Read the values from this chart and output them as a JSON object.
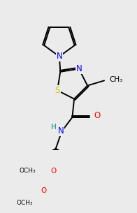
{
  "background_color": "#ebebeb",
  "atom_colors": {
    "N": "#0000ff",
    "O": "#ff0000",
    "S": "#cccc00",
    "C": "#000000",
    "H": "#008080"
  },
  "bond_width": 1.4,
  "font_size_atom": 8.5,
  "font_size_small": 7.5
}
